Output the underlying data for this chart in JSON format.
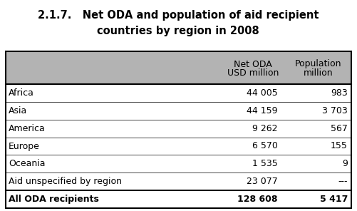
{
  "title_line1": "2.1.7.   Net ODA and population of aid recipient",
  "title_line2": "countries by region in 2008",
  "col_headers_line1": [
    "Net ODA",
    "Population"
  ],
  "col_headers_line2": [
    "USD million",
    "million"
  ],
  "rows": [
    [
      "Africa",
      "44 005",
      "983"
    ],
    [
      "Asia",
      "44 159",
      "3 703"
    ],
    [
      "America",
      "9 262",
      "567"
    ],
    [
      "Europe",
      "6 570",
      "155"
    ],
    [
      "Oceania",
      "1 535",
      "9"
    ],
    [
      "Aid unspecified by region",
      "23 077",
      "---"
    ],
    [
      "All ODA recipients",
      "128 608",
      "5 417"
    ]
  ],
  "header_bg": "#b3b3b3",
  "fig_bg": "#ffffff",
  "title_fontsize": 10.5,
  "cell_fontsize": 9,
  "header_fontsize": 9
}
